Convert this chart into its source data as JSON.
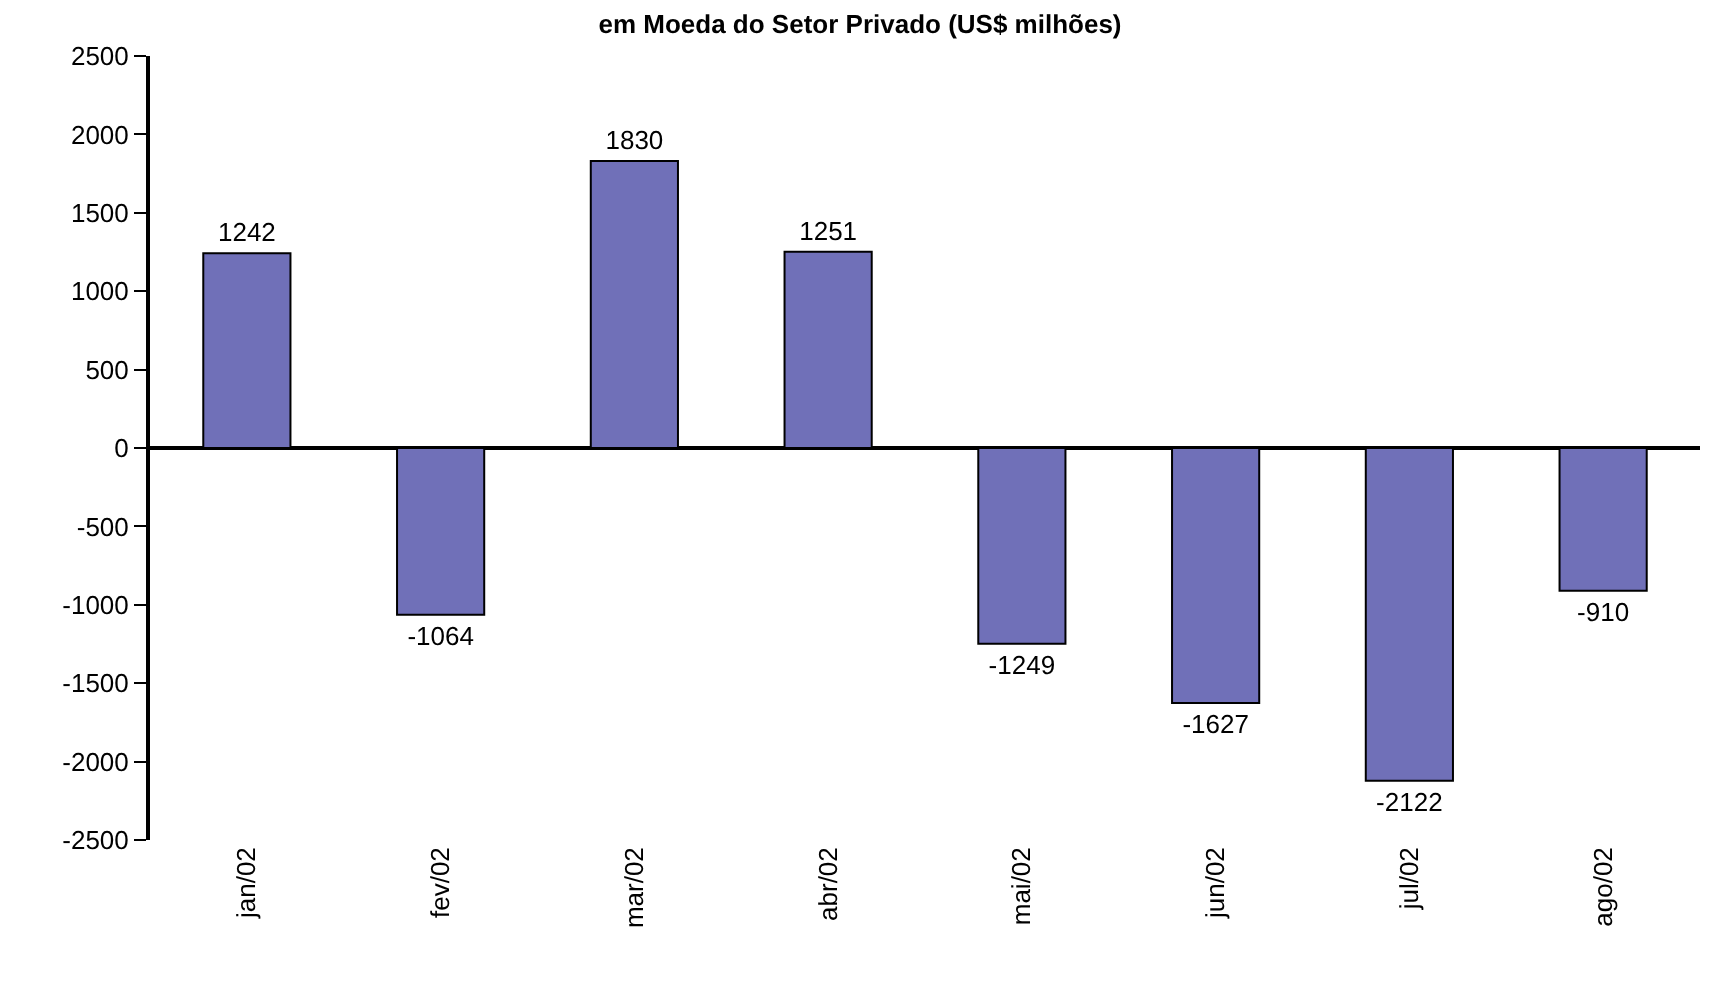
{
  "chart_data": {
    "type": "bar",
    "title": "em Moeda do Setor Privado (US$ milhões)",
    "categories": [
      "jan/02",
      "fev/02",
      "mar/02",
      "abr/02",
      "mai/02",
      "jun/02",
      "jul/02",
      "ago/02"
    ],
    "values": [
      1242,
      -1064,
      1830,
      1251,
      -1249,
      -1627,
      -2122,
      -910
    ],
    "color": "#7070b8",
    "data_labels": true,
    "legend": false,
    "ylim": [
      -2500,
      2500
    ],
    "yticks": [
      -2500,
      -2000,
      -1500,
      -1000,
      -500,
      0,
      500,
      1000,
      1500,
      2000,
      2500
    ]
  }
}
